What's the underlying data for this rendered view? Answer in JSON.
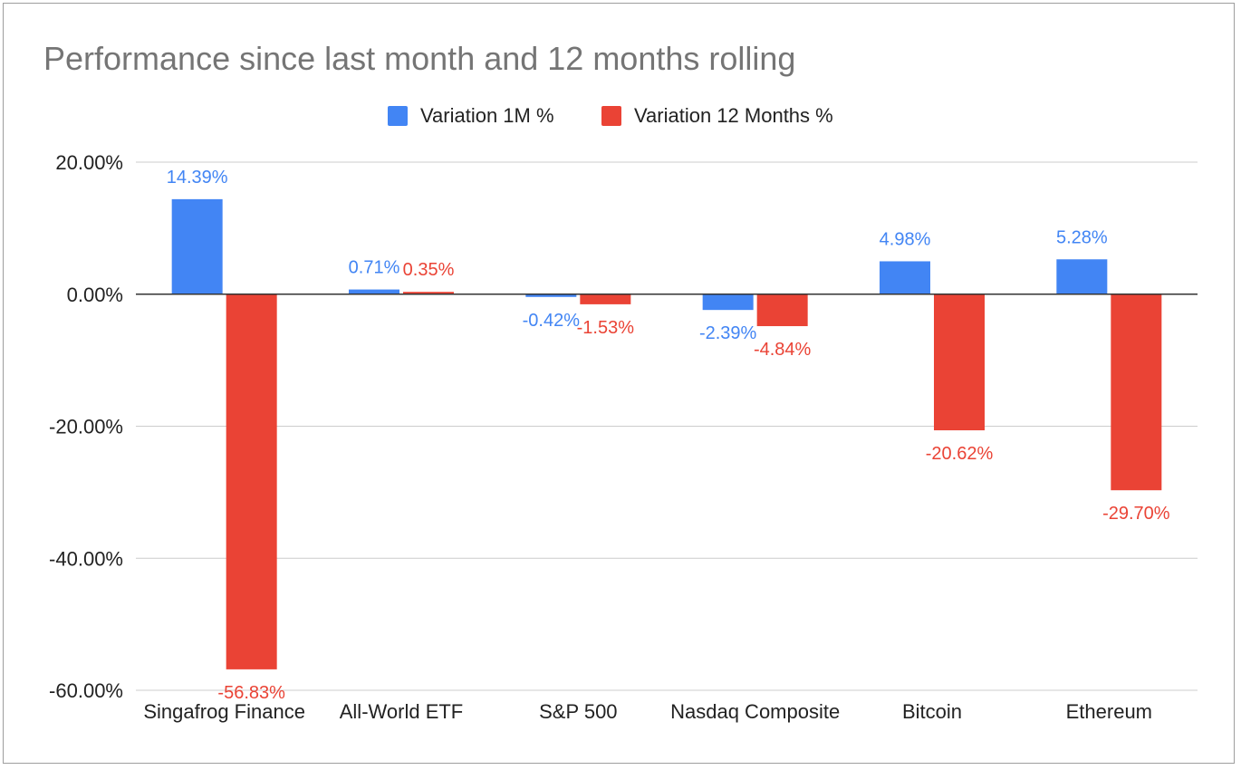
{
  "chart_data": {
    "type": "bar",
    "title": "Performance since last month and 12 months rolling",
    "xlabel": "",
    "ylabel": "",
    "categories": [
      "Singafrog Finance",
      "All-World ETF",
      "S&P 500",
      "Nasdaq Composite",
      "Bitcoin",
      "Ethereum"
    ],
    "series": [
      {
        "name": "Variation 1M %",
        "color": "#4285f4",
        "values": [
          14.39,
          0.71,
          -0.42,
          -2.39,
          4.98,
          5.28
        ],
        "labels": [
          "14.39%",
          "0.71%",
          "-0.42%",
          "-2.39%",
          "4.98%",
          "5.28%"
        ]
      },
      {
        "name": "Variation 12 Months %",
        "color": "#ea4335",
        "values": [
          -56.83,
          0.35,
          -1.53,
          -4.84,
          -20.62,
          -29.7
        ],
        "labels": [
          "-56.83%",
          "0.35%",
          "-1.53%",
          "-4.84%",
          "-20.62%",
          "-29.70%"
        ]
      }
    ],
    "ylim": [
      -60,
      20
    ],
    "yticks": [
      20,
      0,
      -20,
      -40,
      -60
    ],
    "ytick_labels": [
      "20.00%",
      "0.00%",
      "-20.00%",
      "-40.00%",
      "-60.00%"
    ],
    "grid": true,
    "legend_position": "top-center"
  }
}
